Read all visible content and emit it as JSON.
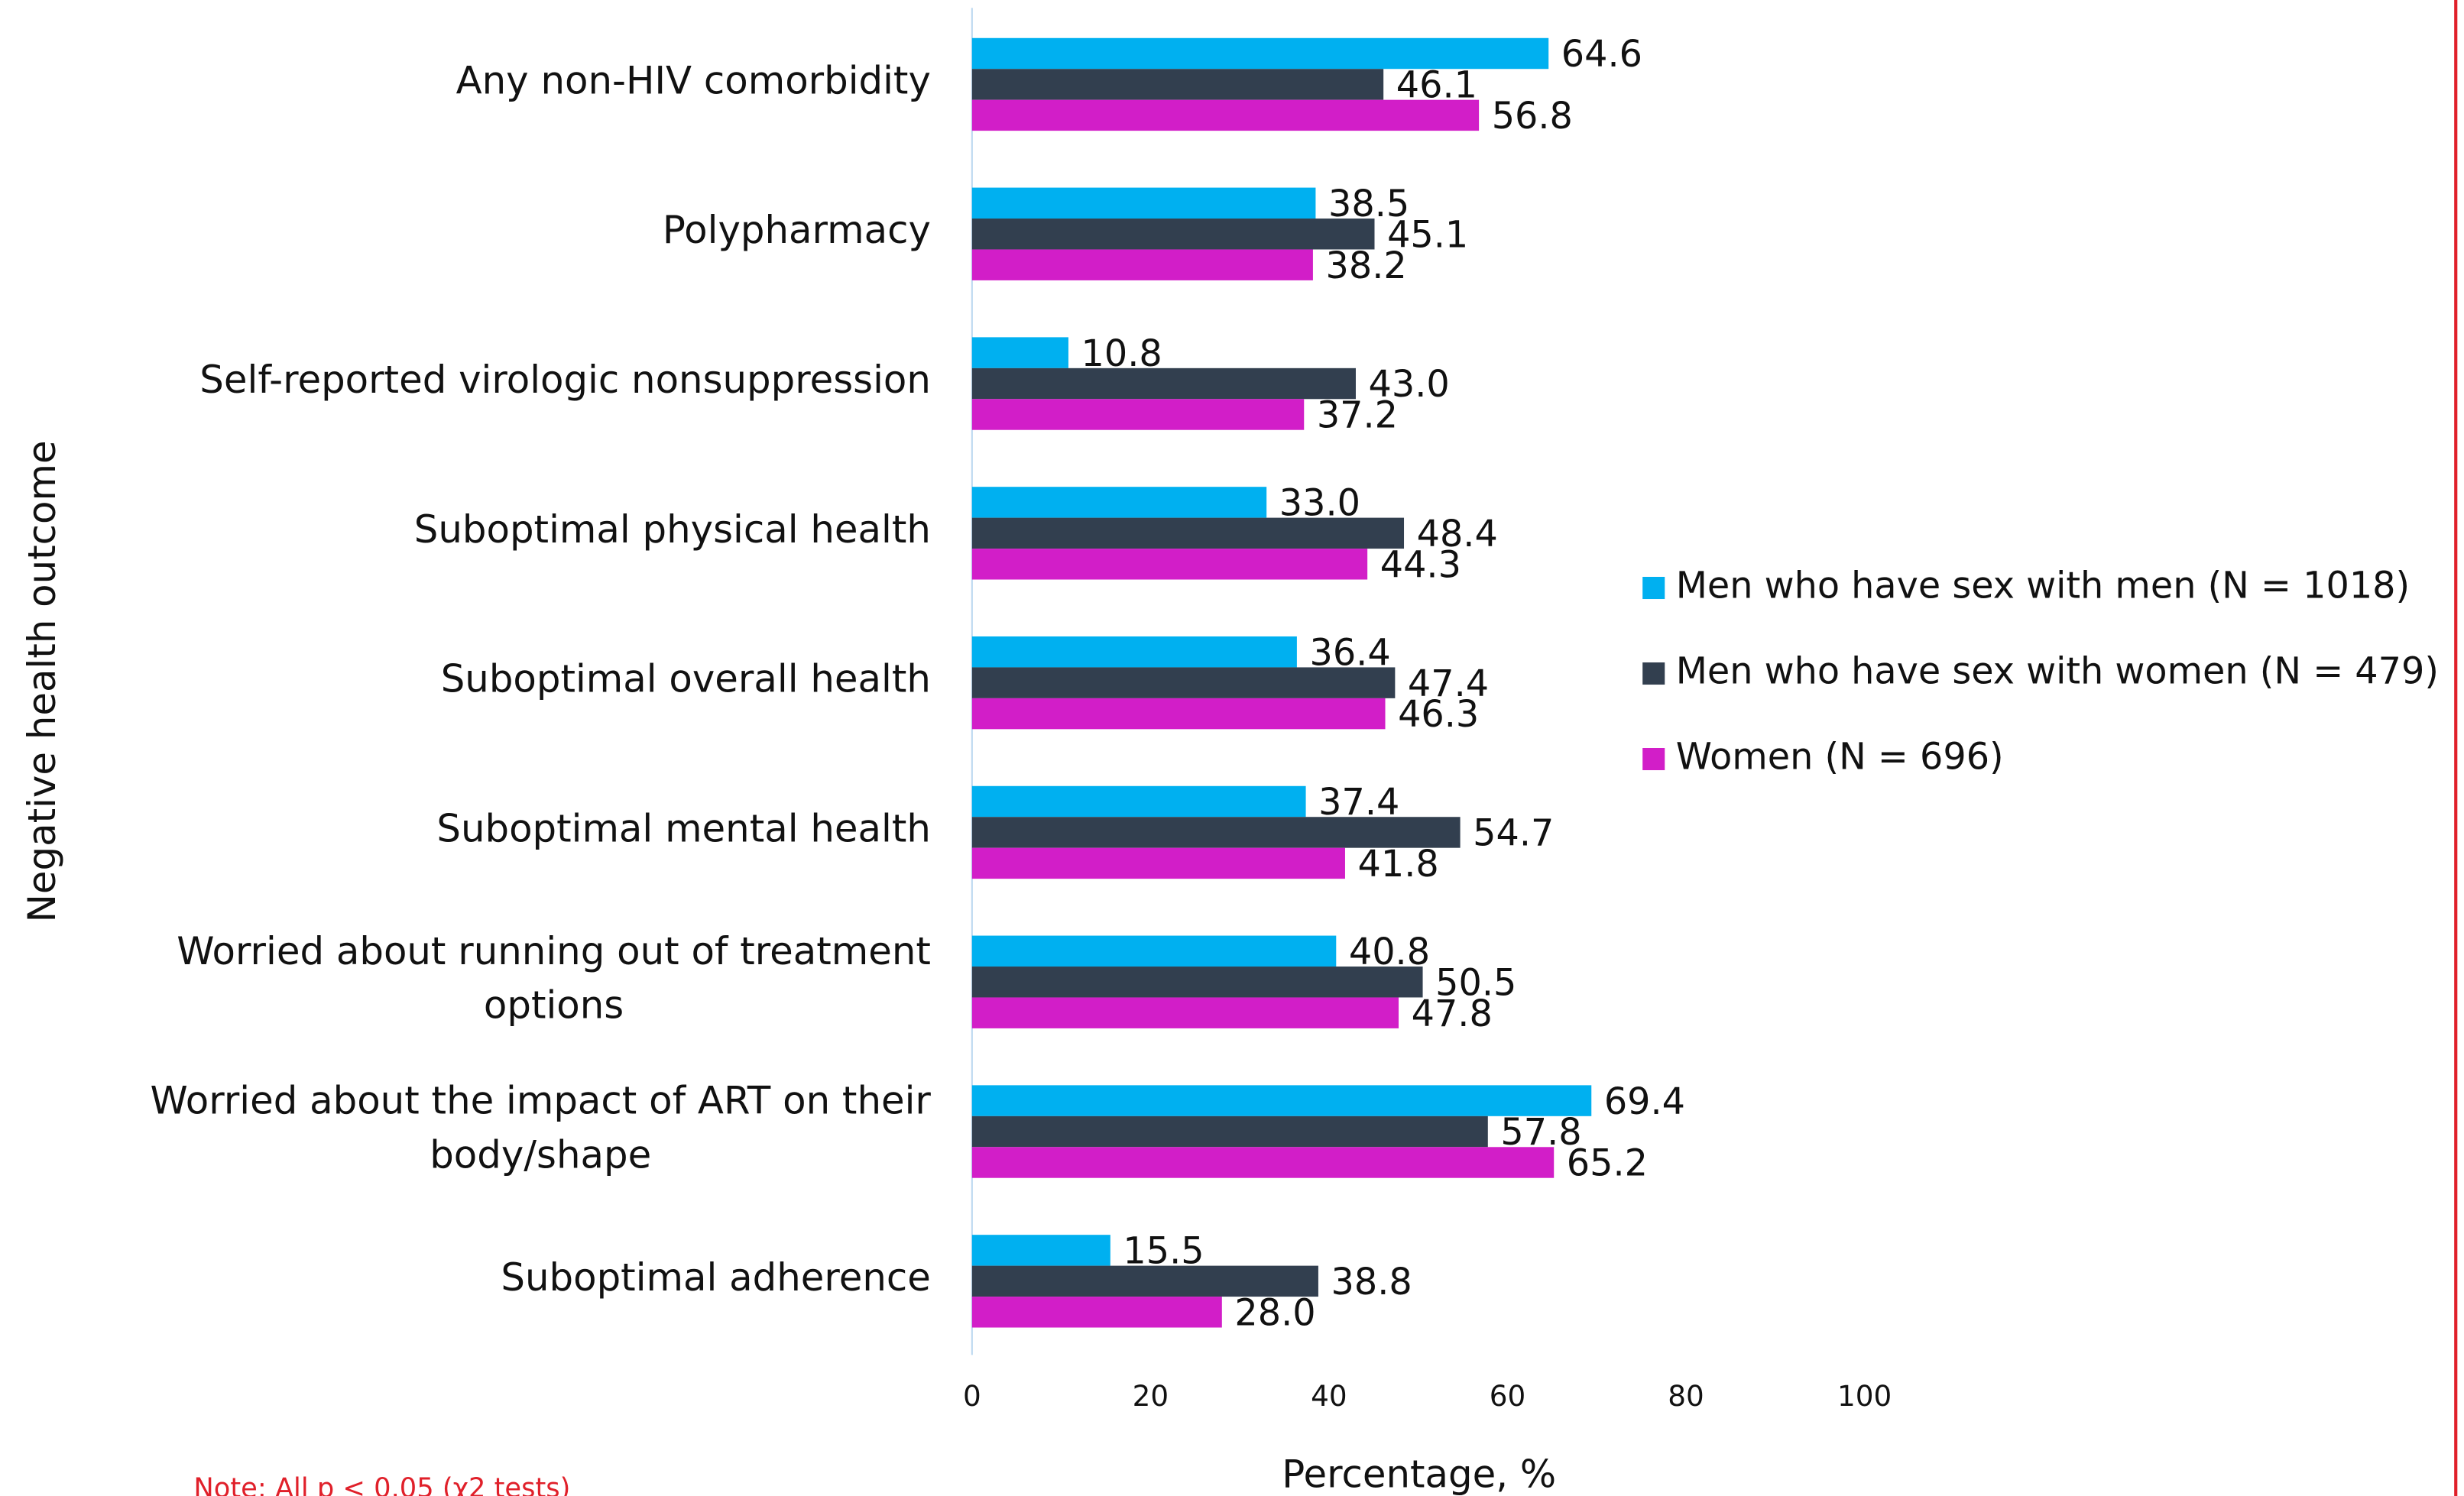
{
  "chart_data": {
    "type": "barh",
    "ylabel": "Negative health outcome",
    "xlabel": "Percentage, %",
    "note": "Note: All p < 0.05 (χ2 tests)",
    "categories": [
      [
        "Any non-HIV comorbidity"
      ],
      [
        "Polypharmacy"
      ],
      [
        "Self-reported virologic nonsuppression"
      ],
      [
        "Suboptimal physical health"
      ],
      [
        "Suboptimal overall health"
      ],
      [
        "Suboptimal mental health"
      ],
      [
        "Worried about running out of treatment",
        "options"
      ],
      [
        "Worried about the impact of ART on their",
        "body/shape"
      ],
      [
        "Suboptimal adherence"
      ]
    ],
    "series": [
      {
        "name": "Men who have sex with men (N = 1018)",
        "color": "#00b0f0",
        "values": [
          64.6,
          38.5,
          10.8,
          33,
          36.4,
          37.4,
          40.8,
          69.4,
          15.5
        ],
        "value_labels": [
          "64.6",
          "38.5",
          "10.8",
          "33.0",
          "36.4",
          "37.4",
          "40.8",
          "69.4",
          "15.5"
        ]
      },
      {
        "name": "Men who have sex with women (N = 479)",
        "color": "#323f4f",
        "values": [
          46.1,
          45.1,
          43,
          48.4,
          47.4,
          54.7,
          50.5,
          57.8,
          38.8
        ],
        "value_labels": [
          "46.1",
          "45.1",
          "43.0",
          "48.4",
          "47.4",
          "54.7",
          "50.5",
          "57.8",
          "38.8"
        ]
      },
      {
        "name": "Women (N = 696)",
        "color": "#d21ec8",
        "values": [
          56.8,
          38.2,
          37.2,
          44.3,
          46.3,
          41.8,
          47.8,
          65.2,
          28
        ],
        "value_labels": [
          "56.8",
          "38.2",
          "37.2",
          "44.3",
          "46.3",
          "41.8",
          "47.8",
          "65.2",
          "28.0"
        ]
      }
    ],
    "xlim": [
      0,
      100
    ],
    "xticks": [
      0,
      20,
      40,
      60,
      80,
      100
    ],
    "legend": "right"
  }
}
